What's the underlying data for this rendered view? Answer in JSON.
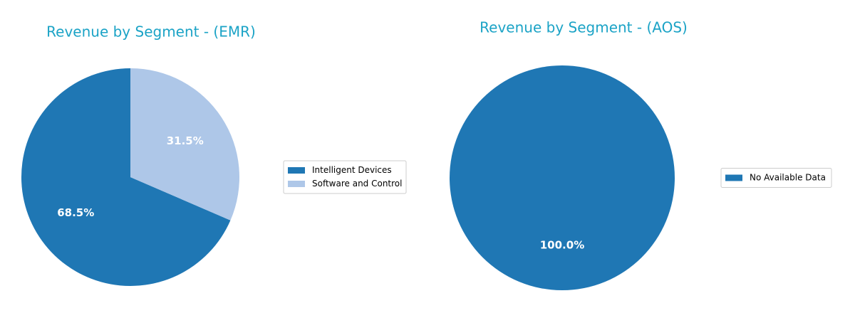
{
  "chart_data": [
    {
      "type": "pie",
      "title": "Revenue by Segment - (EMR)",
      "categories": [
        "Intelligent Devices",
        "Software and Control"
      ],
      "values": [
        68.5,
        31.5
      ],
      "value_labels": [
        "68.5%",
        "31.5%"
      ],
      "colors": [
        "#1f77b4",
        "#aec7e8"
      ],
      "legend": "right"
    },
    {
      "type": "pie",
      "title": "Revenue by Segment - (AOS)",
      "categories": [
        "No Available Data"
      ],
      "values": [
        100
      ],
      "value_labels": [
        "100.0%"
      ],
      "colors": [
        "#1f77b4"
      ],
      "legend": "right"
    }
  ]
}
